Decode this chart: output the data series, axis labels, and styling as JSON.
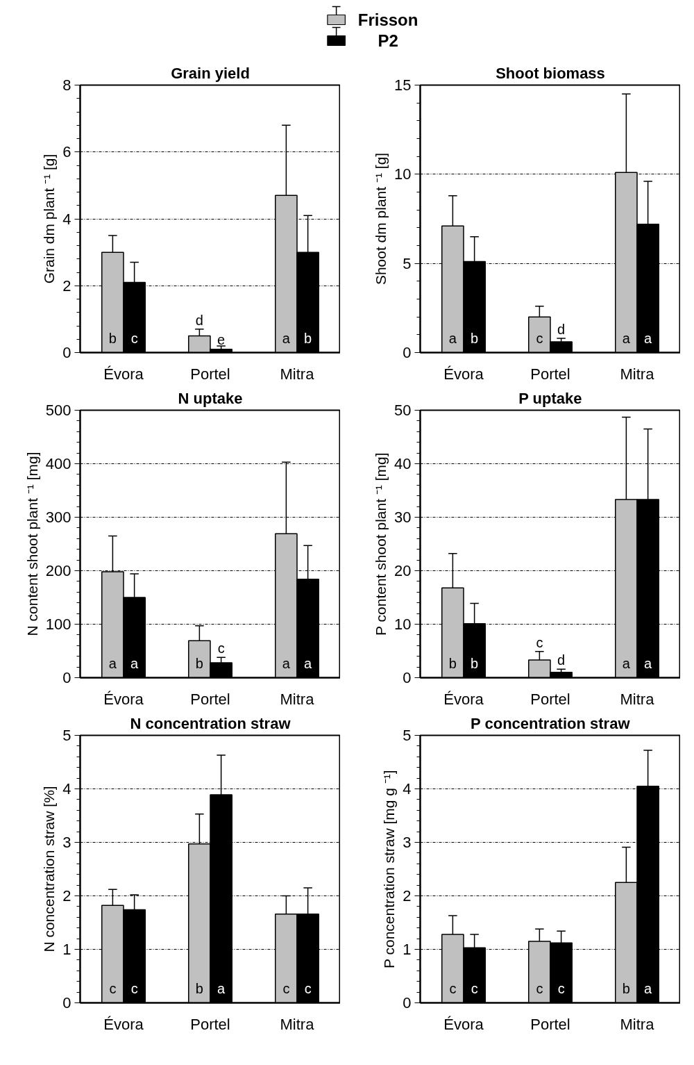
{
  "chart_data": [
    {
      "type": "bar",
      "title": "Grain yield",
      "ylabel": "Grain dm plant ⁻¹ [g]",
      "categories": [
        "Évora",
        "Portel",
        "Mitra"
      ],
      "ylim": [
        0,
        8
      ],
      "yticks": [
        0,
        2,
        4,
        6,
        8
      ],
      "grid": "y",
      "legend": "top",
      "series": [
        {
          "name": "Frisson",
          "color": "#c0c0c0",
          "values": [
            3.0,
            0.5,
            4.7
          ],
          "errors": [
            [
              3.0,
              3.5
            ],
            [
              0.5,
              0.7
            ],
            [
              4.7,
              6.8
            ]
          ],
          "value_labels": [
            "b",
            "d",
            "a"
          ]
        },
        {
          "name": "P2",
          "color": "#000000",
          "values": [
            2.1,
            0.1,
            3.0
          ],
          "errors": [
            [
              2.1,
              2.7
            ],
            [
              0.1,
              0.2
            ],
            [
              3.0,
              4.1
            ]
          ],
          "value_labels": [
            "c",
            "e",
            "b"
          ]
        }
      ]
    },
    {
      "type": "bar",
      "title": "Shoot biomass",
      "ylabel": "Shoot dm plant ⁻¹ [g]",
      "categories": [
        "Évora",
        "Portel",
        "Mitra"
      ],
      "ylim": [
        0,
        15
      ],
      "yticks": [
        0,
        5,
        10,
        15
      ],
      "grid": "y",
      "series": [
        {
          "color": "#c0c0c0",
          "values": [
            7.1,
            2.0,
            10.1
          ],
          "errors": [
            [
              7.1,
              8.8
            ],
            [
              2.0,
              2.6
            ],
            [
              10.1,
              14.5
            ]
          ],
          "value_labels": [
            "a",
            "c",
            "a"
          ]
        },
        {
          "color": "#000000",
          "values": [
            5.1,
            0.6,
            7.2
          ],
          "errors": [
            [
              5.1,
              6.5
            ],
            [
              0.6,
              0.8
            ],
            [
              7.2,
              9.6
            ]
          ],
          "value_labels": [
            "b",
            "d",
            "a"
          ]
        }
      ]
    },
    {
      "type": "bar",
      "title": "N uptake",
      "ylabel": "N content shoot plant ⁻¹ [mg]",
      "categories": [
        "Évora",
        "Portel",
        "Mitra"
      ],
      "ylim": [
        0,
        500
      ],
      "yticks": [
        0,
        100,
        200,
        300,
        400,
        500
      ],
      "grid": "y",
      "series": [
        {
          "color": "#c0c0c0",
          "values": [
            198,
            69,
            269
          ],
          "errors": [
            [
              198,
              265
            ],
            [
              69,
              97
            ],
            [
              269,
              403
            ]
          ],
          "value_labels": [
            "a",
            "b",
            "a"
          ]
        },
        {
          "color": "#000000",
          "values": [
            150,
            28,
            184
          ],
          "errors": [
            [
              150,
              194
            ],
            [
              28,
              38
            ],
            [
              184,
              247
            ]
          ],
          "value_labels": [
            "a",
            "c",
            "a"
          ]
        }
      ]
    },
    {
      "type": "bar",
      "title": "P uptake",
      "ylabel": "P content shoot plant ⁻¹ [mg]",
      "categories": [
        "Évora",
        "Portel",
        "Mitra"
      ],
      "ylim": [
        0,
        50
      ],
      "yticks": [
        0,
        10,
        20,
        30,
        40,
        50
      ],
      "grid": "y",
      "series": [
        {
          "color": "#c0c0c0",
          "values": [
            16.8,
            3.3,
            33.3
          ],
          "errors": [
            [
              16.8,
              23.2
            ],
            [
              3.3,
              4.9
            ],
            [
              33.3,
              48.7
            ]
          ],
          "value_labels": [
            "b",
            "c",
            "a"
          ]
        },
        {
          "color": "#000000",
          "values": [
            10.1,
            1.0,
            33.3
          ],
          "errors": [
            [
              10.1,
              13.9
            ],
            [
              1.0,
              1.6
            ],
            [
              33.3,
              46.5
            ]
          ],
          "value_labels": [
            "b",
            "d",
            "a"
          ]
        }
      ]
    },
    {
      "type": "bar",
      "title": "N concentration straw",
      "ylabel": "N concentration straw [%]",
      "categories": [
        "Évora",
        "Portel",
        "Mitra"
      ],
      "ylim": [
        0,
        5
      ],
      "yticks": [
        0,
        1,
        2,
        3,
        4,
        5
      ],
      "grid": "y",
      "series": [
        {
          "color": "#c0c0c0",
          "values": [
            1.82,
            2.97,
            1.66
          ],
          "errors": [
            [
              1.82,
              2.12
            ],
            [
              2.97,
              3.53
            ],
            [
              1.66,
              2.0
            ]
          ],
          "value_labels": [
            "c",
            "b",
            "c"
          ]
        },
        {
          "color": "#000000",
          "values": [
            1.74,
            3.89,
            1.66
          ],
          "errors": [
            [
              1.74,
              2.02
            ],
            [
              3.89,
              4.63
            ],
            [
              1.66,
              2.15
            ]
          ],
          "value_labels": [
            "c",
            "a",
            "c"
          ]
        }
      ]
    },
    {
      "type": "bar",
      "title": "P concentration straw",
      "ylabel": "P concentration straw [mg g ⁻¹]",
      "categories": [
        "Évora",
        "Portel",
        "Mitra"
      ],
      "ylim": [
        0,
        5
      ],
      "yticks": [
        0,
        1,
        2,
        3,
        4,
        5
      ],
      "grid": "y",
      "series": [
        {
          "color": "#c0c0c0",
          "values": [
            1.28,
            1.15,
            2.25
          ],
          "errors": [
            [
              1.28,
              1.63
            ],
            [
              1.15,
              1.38
            ],
            [
              2.25,
              2.91
            ]
          ],
          "value_labels": [
            "c",
            "c",
            "b"
          ]
        },
        {
          "color": "#000000",
          "values": [
            1.03,
            1.12,
            4.05
          ],
          "errors": [
            [
              1.03,
              1.28
            ],
            [
              1.12,
              1.34
            ],
            [
              4.05,
              4.72
            ]
          ],
          "value_labels": [
            "c",
            "c",
            "a"
          ]
        }
      ]
    }
  ]
}
